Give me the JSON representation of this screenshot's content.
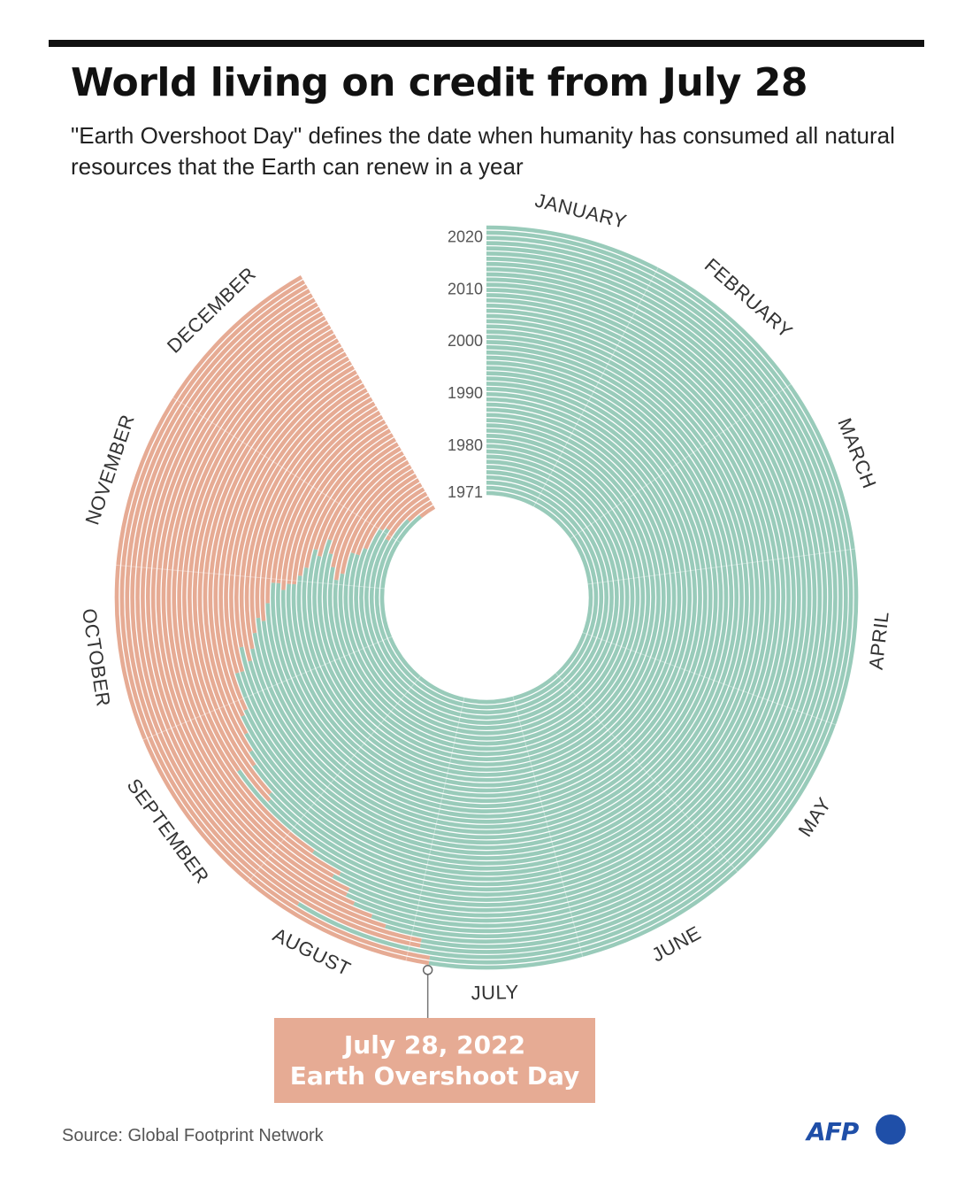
{
  "header": {
    "title": "World living on credit from July 28",
    "subtitle": "\"Earth Overshoot Day\" defines the date when humanity has consumed all natural resources that the Earth can renew in a year"
  },
  "chart_data": {
    "type": "radial-bar",
    "title": "World living on credit from July 28",
    "description": "Each ring is one year (1971 innermost to 2022 outermost). Green = days before Earth Overshoot Day, orange = days after, until Dec 31.",
    "months": [
      "JANUARY",
      "FEBRUARY",
      "MARCH",
      "APRIL",
      "MAY",
      "JUNE",
      "JULY",
      "AUGUST",
      "SEPTEMBER",
      "OCTOBER",
      "NOVEMBER",
      "DECEMBER"
    ],
    "year_labels": [
      "1971",
      "1980",
      "1990",
      "2000",
      "2010",
      "2020"
    ],
    "years": [
      1971,
      1972,
      1973,
      1974,
      1975,
      1976,
      1977,
      1978,
      1979,
      1980,
      1981,
      1982,
      1983,
      1984,
      1985,
      1986,
      1987,
      1988,
      1989,
      1990,
      1991,
      1992,
      1993,
      1994,
      1995,
      1996,
      1997,
      1998,
      1999,
      2000,
      2001,
      2002,
      2003,
      2004,
      2005,
      2006,
      2007,
      2008,
      2009,
      2010,
      2011,
      2012,
      2013,
      2014,
      2015,
      2016,
      2017,
      2018,
      2019,
      2020,
      2021,
      2022
    ],
    "overshoot_day_of_year": [
      355,
      348,
      332,
      337,
      335,
      323,
      319,
      319,
      309,
      306,
      311,
      316,
      321,
      314,
      316,
      309,
      306,
      303,
      303,
      301,
      303,
      303,
      297,
      292,
      293,
      289,
      285,
      282,
      286,
      280,
      280,
      271,
      270,
      266,
      262,
      259,
      252,
      251,
      260,
      237,
      230,
      231,
      227,
      227,
      225,
      221,
      218,
      211,
      211,
      234,
      209,
      209
    ],
    "colors": {
      "before": "#99cbba",
      "after": "#e6ab94"
    }
  },
  "callout": {
    "date": "July 28, 2022",
    "label": "Earth Overshoot Day"
  },
  "footer": {
    "source": "Source: Global Footprint Network",
    "logo_text": "AFP"
  }
}
